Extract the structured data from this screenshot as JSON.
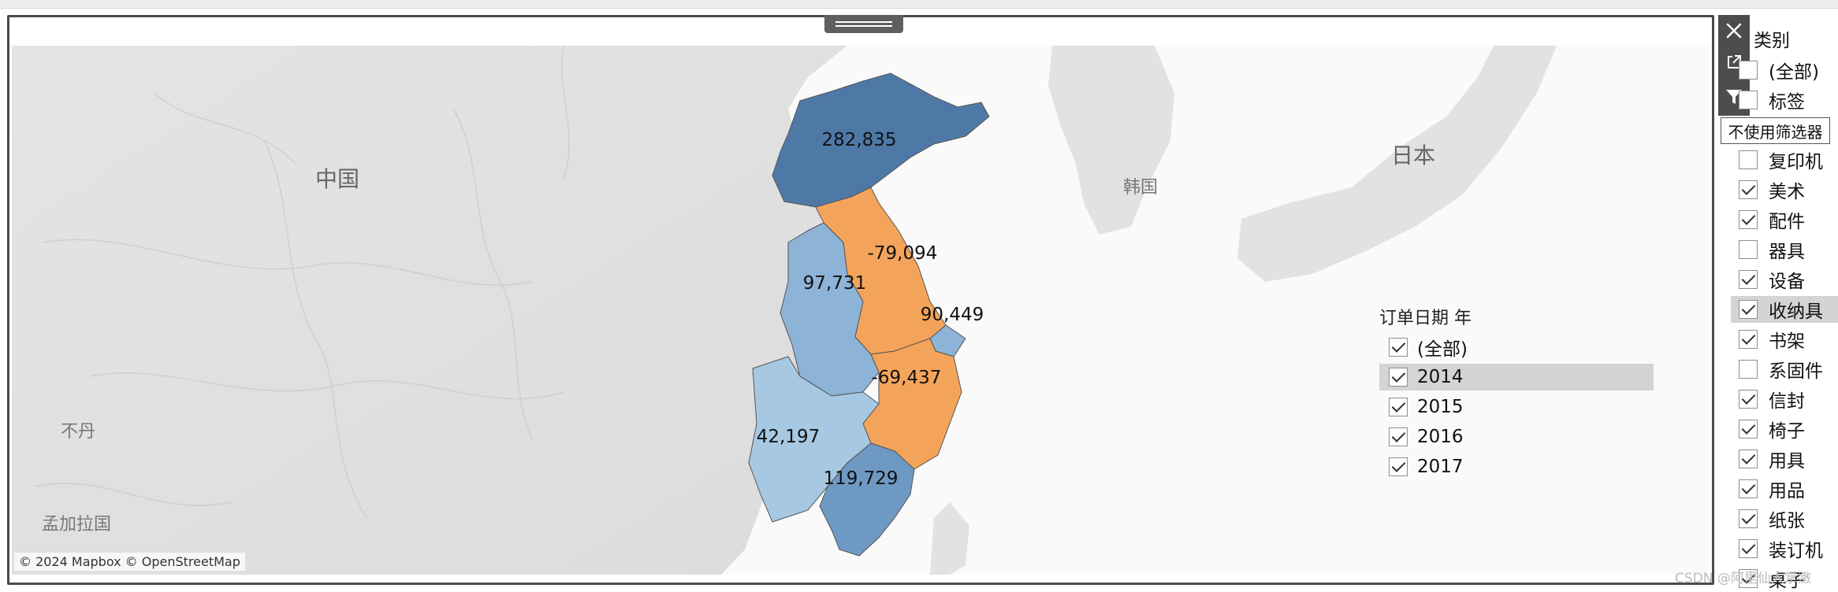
{
  "map": {
    "countries": {
      "china": "中国",
      "korea": "韩国",
      "japan": "日本",
      "bhutan": "不丹",
      "bangladesh": "孟加拉国"
    },
    "attribution": "© 2024 Mapbox © OpenStreetMap",
    "regions": [
      {
        "id": "shandong",
        "value": "282,835",
        "color": "#4e79a7"
      },
      {
        "id": "jiangsu",
        "value": "-79,094",
        "color": "#f4a45a"
      },
      {
        "id": "anhui",
        "value": "97,731",
        "color": "#8db3d6"
      },
      {
        "id": "shanghai",
        "value": "90,449",
        "color": "#8db3d6"
      },
      {
        "id": "zhejiang",
        "value": "-69,437",
        "color": "#f4a45a"
      },
      {
        "id": "jiangxi",
        "value": "42,197",
        "color": "#a6c8e2"
      },
      {
        "id": "fujian",
        "value": "119,729",
        "color": "#6e99c3"
      }
    ]
  },
  "year_filter": {
    "title": "订单日期 年",
    "items": [
      {
        "label": "(全部)",
        "checked": true,
        "highlighted": false
      },
      {
        "label": "2014",
        "checked": true,
        "highlighted": true
      },
      {
        "label": "2015",
        "checked": true,
        "highlighted": false
      },
      {
        "label": "2016",
        "checked": true,
        "highlighted": false
      },
      {
        "label": "2017",
        "checked": true,
        "highlighted": false
      }
    ]
  },
  "toolbar": {
    "icons": [
      "close-icon",
      "external-link-icon",
      "filter-icon"
    ],
    "tooltip": "不使用筛选器"
  },
  "category_filter": {
    "title": "类别",
    "items": [
      {
        "label": "(全部)",
        "checked": false,
        "highlighted": false
      },
      {
        "label": "标签",
        "checked": false,
        "highlighted": false
      },
      {
        "label": "复印机",
        "checked": false,
        "highlighted": false
      },
      {
        "label": "美术",
        "checked": true,
        "highlighted": false
      },
      {
        "label": "配件",
        "checked": true,
        "highlighted": false
      },
      {
        "label": "器具",
        "checked": false,
        "highlighted": false
      },
      {
        "label": "设备",
        "checked": true,
        "highlighted": false
      },
      {
        "label": "收纳具",
        "checked": true,
        "highlighted": true
      },
      {
        "label": "书架",
        "checked": true,
        "highlighted": false
      },
      {
        "label": "系固件",
        "checked": false,
        "highlighted": false
      },
      {
        "label": "信封",
        "checked": true,
        "highlighted": false
      },
      {
        "label": "椅子",
        "checked": true,
        "highlighted": false
      },
      {
        "label": "用具",
        "checked": true,
        "highlighted": false
      },
      {
        "label": "用品",
        "checked": true,
        "highlighted": false
      },
      {
        "label": "纸张",
        "checked": true,
        "highlighted": false
      },
      {
        "label": "装订机",
        "checked": true,
        "highlighted": false
      },
      {
        "label": "桌子",
        "checked": true,
        "highlighted": false
      }
    ]
  },
  "watermark": "CSDN @阿里仙人掌嫩"
}
